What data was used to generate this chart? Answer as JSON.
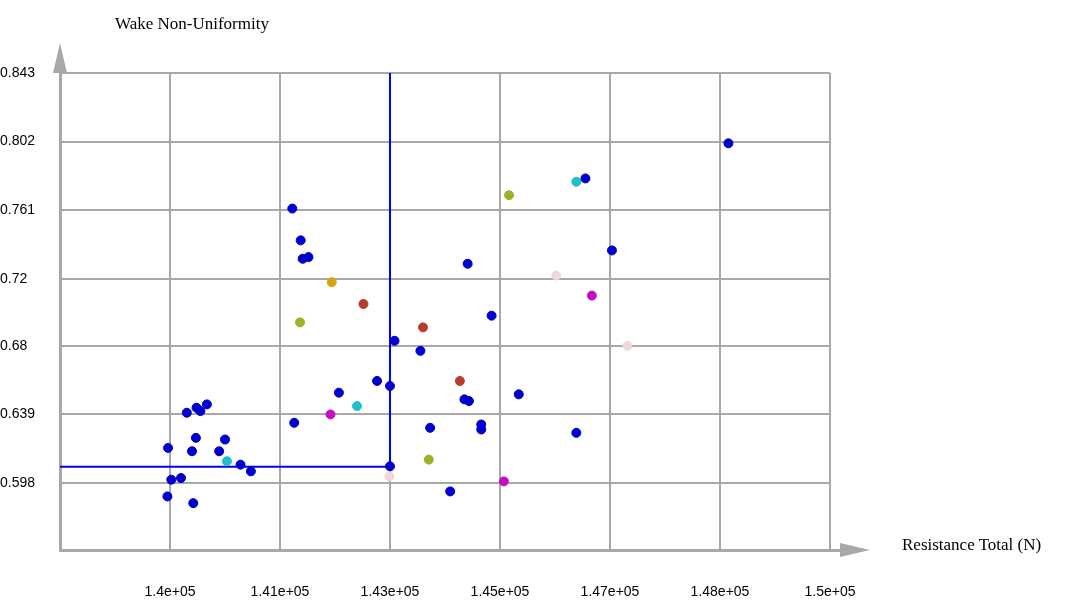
{
  "chart_data": {
    "type": "scatter",
    "xlabel": "Resistance Total (N)",
    "ylabel": "Wake Non-Uniformity",
    "x": [
      140010,
      140160,
      140220,
      140320,
      140150,
      140600,
      139720,
      140090,
      140510,
      140630,
      140840,
      141000,
      139770,
      139920,
      139710,
      140110,
      141640,
      141770,
      141800,
      141890,
      142250,
      142740,
      141760,
      143220,
      142950,
      143150,
      142360,
      142640,
      142230,
      141670,
      143150,
      143140,
      144350,
      144720,
      143660,
      143620,
      144230,
      144300,
      144370,
      145140,
      143770,
      144560,
      144560,
      143750,
      144910,
      144080,
      146030,
      146170,
      144990,
      146580,
      145720,
      146270,
      146820,
      146030,
      148380
    ],
    "values": [
      0.64,
      0.643,
      0.641,
      0.645,
      0.625,
      0.624,
      0.619,
      0.617,
      0.617,
      0.611,
      0.609,
      0.605,
      0.6,
      0.601,
      0.59,
      0.586,
      0.762,
      0.743,
      0.732,
      0.733,
      0.718,
      0.705,
      0.694,
      0.683,
      0.659,
      0.656,
      0.652,
      0.644,
      0.639,
      0.634,
      0.608,
      0.602,
      0.729,
      0.698,
      0.691,
      0.677,
      0.659,
      0.648,
      0.647,
      0.651,
      0.631,
      0.633,
      0.63,
      0.612,
      0.599,
      0.593,
      0.778,
      0.78,
      0.77,
      0.737,
      0.722,
      0.71,
      0.68,
      0.628,
      0.801
    ],
    "colors": [
      "#0000cc",
      "#0000cc",
      "#0000cc",
      "#0000cc",
      "#0000cc",
      "#0000cc",
      "#0000cc",
      "#0000cc",
      "#0000cc",
      "#20c0c8",
      "#0000cc",
      "#0000cc",
      "#0000cc",
      "#0000cc",
      "#0000cc",
      "#0000cc",
      "#0000cc",
      "#0000cc",
      "#0000cc",
      "#0000cc",
      "#d4a80c",
      "#b83c2c",
      "#a0b028",
      "#0000cc",
      "#0000cc",
      "#0000cc",
      "#0000cc",
      "#20c0c8",
      "#c010c0",
      "#0000cc",
      "#0000cc",
      "#f0d8d8",
      "#0000cc",
      "#0000cc",
      "#b83c2c",
      "#0000cc",
      "#b83c2c",
      "#0000cc",
      "#0000cc",
      "#0000cc",
      "#0000cc",
      "#0000cc",
      "#0000cc",
      "#a0b028",
      "#c010c0",
      "#0000cc",
      "#20c0c8",
      "#0000cc",
      "#a0b028",
      "#0000cc",
      "#f0d8d8",
      "#c010c0",
      "#f0d8d8",
      "#0000cc",
      "#0000cc"
    ],
    "xlim": [
      138050,
      149950
    ],
    "ylim": [
      0.558,
      0.843
    ],
    "xticks": [
      {
        "value": 139750,
        "label": "1.4e+05"
      },
      {
        "value": 141450,
        "label": "1.41e+05"
      },
      {
        "value": 143150,
        "label": "1.43e+05"
      },
      {
        "value": 144850,
        "label": "1.45e+05"
      },
      {
        "value": 146550,
        "label": "1.47e+05"
      },
      {
        "value": 148250,
        "label": "1.48e+05"
      },
      {
        "value": 149950,
        "label": "1.5e+05"
      }
    ],
    "yticks": [
      0.598,
      0.639,
      0.68,
      0.72,
      0.761,
      0.802,
      0.843
    ],
    "grid": true,
    "marker": "circle",
    "ref_lines": [
      {
        "axis": "x",
        "value": 143150,
        "color": "#0000ff"
      },
      {
        "axis": "y",
        "value": 0.6078,
        "color": "#0000ff"
      }
    ]
  }
}
